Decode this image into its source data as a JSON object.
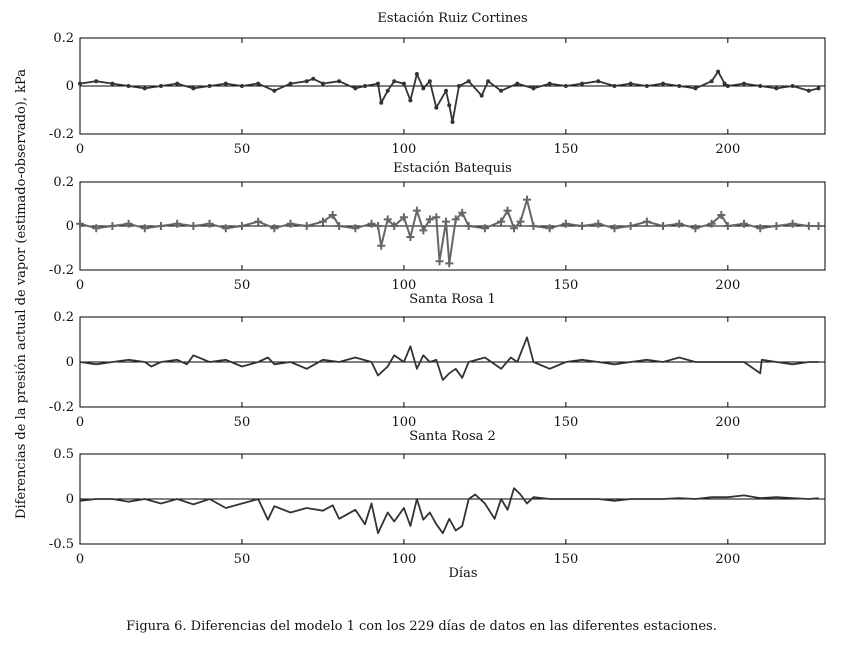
{
  "caption": "Figura 6. Diferencias del modelo 1 con los 229 días de datos en las diferentes estaciones.",
  "chart_data": {
    "type": "line",
    "ylabel": "Diferencias de la presión actual de vapor (estimado-observado), kPa",
    "xlabel": "Días",
    "xlim": [
      0,
      230
    ],
    "xticks": [
      0,
      50,
      100,
      150,
      200
    ],
    "line_color": "#333333",
    "marker_color_batequis": "#666666",
    "panels": [
      {
        "title": "Estación Ruiz Cortines",
        "ylim": [
          -0.2,
          0.2
        ],
        "yticks": [
          -0.2,
          0,
          0.2
        ],
        "ytick_labels": [
          "-0.2",
          "0",
          "0.2"
        ],
        "marker": "dot",
        "x": [
          0,
          5,
          10,
          15,
          20,
          25,
          30,
          35,
          40,
          45,
          50,
          55,
          60,
          65,
          70,
          72,
          75,
          80,
          85,
          88,
          92,
          93,
          95,
          97,
          100,
          102,
          104,
          106,
          108,
          110,
          113,
          114,
          115,
          117,
          120,
          124,
          126,
          130,
          135,
          140,
          145,
          150,
          155,
          160,
          165,
          170,
          175,
          180,
          185,
          190,
          195,
          197,
          199,
          200,
          205,
          210,
          215,
          220,
          225,
          228
        ],
        "values": [
          0.01,
          0.02,
          0.01,
          0.0,
          -0.01,
          0.0,
          0.01,
          -0.01,
          0.0,
          0.01,
          0.0,
          0.01,
          -0.02,
          0.01,
          0.02,
          0.03,
          0.01,
          0.02,
          -0.01,
          0.0,
          0.01,
          -0.07,
          -0.02,
          0.02,
          0.01,
          -0.06,
          0.05,
          -0.01,
          0.02,
          -0.09,
          -0.02,
          -0.08,
          -0.15,
          0.0,
          0.02,
          -0.04,
          0.02,
          -0.02,
          0.01,
          -0.01,
          0.01,
          0.0,
          0.01,
          0.02,
          0.0,
          0.01,
          0.0,
          0.01,
          0.0,
          -0.01,
          0.02,
          0.06,
          0.01,
          0.0,
          0.01,
          0.0,
          -0.01,
          0.0,
          -0.02,
          -0.01
        ]
      },
      {
        "title": "Estación Batequis",
        "ylim": [
          -0.2,
          0.2
        ],
        "yticks": [
          -0.2,
          0,
          0.2
        ],
        "ytick_labels": [
          "-0.2",
          "0",
          "0.2"
        ],
        "marker": "plus",
        "x": [
          0,
          5,
          10,
          15,
          20,
          25,
          30,
          35,
          40,
          45,
          50,
          55,
          60,
          65,
          70,
          75,
          78,
          80,
          85,
          90,
          92,
          93,
          95,
          97,
          100,
          102,
          104,
          106,
          108,
          110,
          111,
          113,
          114,
          116,
          118,
          120,
          125,
          130,
          132,
          134,
          136,
          138,
          140,
          145,
          150,
          155,
          160,
          165,
          170,
          175,
          180,
          185,
          190,
          195,
          198,
          200,
          205,
          210,
          215,
          220,
          225,
          228
        ],
        "values": [
          0.01,
          -0.01,
          0.0,
          0.01,
          -0.01,
          0.0,
          0.01,
          0.0,
          0.01,
          -0.01,
          0.0,
          0.02,
          -0.01,
          0.01,
          0.0,
          0.02,
          0.05,
          0.0,
          -0.01,
          0.01,
          0.0,
          -0.09,
          0.03,
          0.0,
          0.04,
          -0.05,
          0.07,
          -0.02,
          0.03,
          0.04,
          -0.16,
          0.02,
          -0.17,
          0.03,
          0.06,
          0.0,
          -0.01,
          0.02,
          0.07,
          -0.01,
          0.02,
          0.12,
          0.0,
          -0.01,
          0.01,
          0.0,
          0.01,
          -0.01,
          0.0,
          0.02,
          0.0,
          0.01,
          -0.01,
          0.01,
          0.05,
          0.0,
          0.01,
          -0.01,
          0.0,
          0.01,
          0.0,
          0.0
        ]
      },
      {
        "title": "Santa Rosa 1",
        "ylim": [
          -0.2,
          0.2
        ],
        "yticks": [
          -0.2,
          0,
          0.2
        ],
        "ytick_labels": [
          "-0.2",
          "0",
          "0.2"
        ],
        "marker": "none",
        "x": [
          0,
          5,
          10,
          15,
          20,
          22,
          25,
          30,
          33,
          35,
          40,
          45,
          50,
          55,
          58,
          60,
          65,
          70,
          75,
          80,
          85,
          90,
          92,
          95,
          97,
          100,
          102,
          104,
          106,
          108,
          110,
          112,
          114,
          116,
          118,
          120,
          125,
          130,
          133,
          135,
          138,
          140,
          145,
          150,
          155,
          160,
          165,
          170,
          175,
          180,
          185,
          190,
          195,
          200,
          205,
          210,
          210.5,
          215,
          220,
          225,
          228
        ],
        "values": [
          0.0,
          -0.01,
          0.0,
          0.01,
          0.0,
          -0.02,
          0.0,
          0.01,
          -0.01,
          0.03,
          0.0,
          0.01,
          -0.02,
          0.0,
          0.02,
          -0.01,
          0.0,
          -0.03,
          0.01,
          0.0,
          0.02,
          0.0,
          -0.06,
          -0.02,
          0.03,
          0.0,
          0.07,
          -0.03,
          0.03,
          0.0,
          0.01,
          -0.08,
          -0.05,
          -0.03,
          -0.07,
          0.0,
          0.02,
          -0.03,
          0.02,
          0.0,
          0.11,
          0.0,
          -0.03,
          0.0,
          0.01,
          0.0,
          -0.01,
          0.0,
          0.01,
          0.0,
          0.02,
          0.0,
          0.0,
          0.0,
          0.0,
          -0.05,
          0.01,
          0.0,
          -0.01,
          0.0,
          0.0
        ]
      },
      {
        "title": "Santa Rosa 2",
        "ylim": [
          -0.5,
          0.5
        ],
        "yticks": [
          -0.5,
          0,
          0.5
        ],
        "ytick_labels": [
          "-0.5",
          "0",
          "0.5"
        ],
        "marker": "none",
        "x": [
          0,
          5,
          10,
          15,
          20,
          25,
          30,
          35,
          40,
          45,
          50,
          55,
          58,
          60,
          65,
          70,
          75,
          78,
          80,
          85,
          88,
          90,
          92,
          95,
          97,
          100,
          102,
          104,
          106,
          108,
          110,
          112,
          114,
          116,
          118,
          120,
          122,
          125,
          128,
          130,
          132,
          134,
          136,
          138,
          140,
          145,
          150,
          155,
          160,
          165,
          170,
          175,
          180,
          185,
          190,
          195,
          200,
          205,
          210,
          215,
          220,
          225,
          228
        ],
        "values": [
          -0.02,
          0.0,
          0.0,
          -0.03,
          0.0,
          -0.05,
          0.0,
          -0.06,
          0.0,
          -0.1,
          -0.05,
          0.0,
          -0.23,
          -0.08,
          -0.15,
          -0.1,
          -0.13,
          -0.07,
          -0.22,
          -0.12,
          -0.28,
          -0.05,
          -0.38,
          -0.15,
          -0.25,
          -0.1,
          -0.3,
          0.0,
          -0.23,
          -0.15,
          -0.28,
          -0.38,
          -0.22,
          -0.35,
          -0.3,
          0.0,
          0.05,
          -0.05,
          -0.22,
          0.0,
          -0.12,
          0.12,
          0.05,
          -0.05,
          0.02,
          0.0,
          0.0,
          0.0,
          0.0,
          -0.02,
          0.0,
          0.0,
          0.0,
          0.01,
          0.0,
          0.02,
          0.02,
          0.04,
          0.01,
          0.02,
          0.01,
          0.0,
          0.01
        ]
      }
    ]
  }
}
